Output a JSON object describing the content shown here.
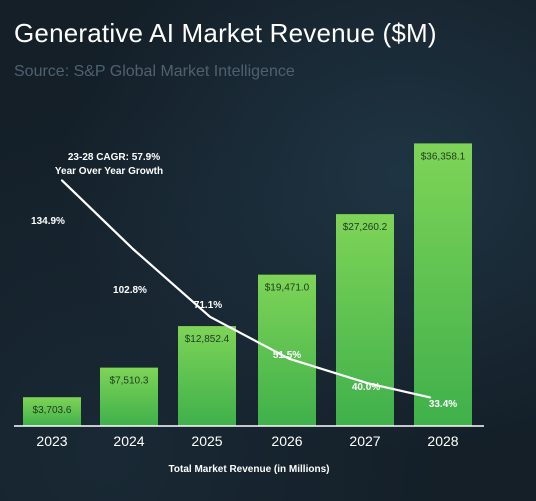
{
  "chart_data": {
    "type": "bar",
    "title": "Generative AI Market Revenue ($M)",
    "subtitle": "Source: S&P Global Market Intelligence",
    "xlabel": "Total Market Revenue (in Millions)",
    "ylabel": "",
    "categories": [
      "2023",
      "2024",
      "2025",
      "2026",
      "2027",
      "2028"
    ],
    "values": [
      3703.6,
      7510.3,
      12852.4,
      19471.0,
      27260.2,
      36358.1
    ],
    "value_labels": [
      "$3,703.6",
      "$7,510.3",
      "$12,852.4",
      "$19,471.0",
      "$27,260.2",
      "$36,358.1"
    ],
    "ylim": [
      0,
      44000
    ],
    "grid": false,
    "bar_color": "#5ec454",
    "growth_series": {
      "values": [
        134.9,
        102.8,
        71.1,
        51.5,
        40.0,
        33.4
      ],
      "labels": [
        "134.9%",
        "102.8%",
        "71.1%",
        "51.5%",
        "40.0%",
        "33.4%"
      ],
      "ylim": [
        20,
        180
      ],
      "color": "#ffffff"
    },
    "annotation": {
      "line1": "23-28 CAGR: 57.9%",
      "line2": "Year Over Year Growth"
    }
  }
}
